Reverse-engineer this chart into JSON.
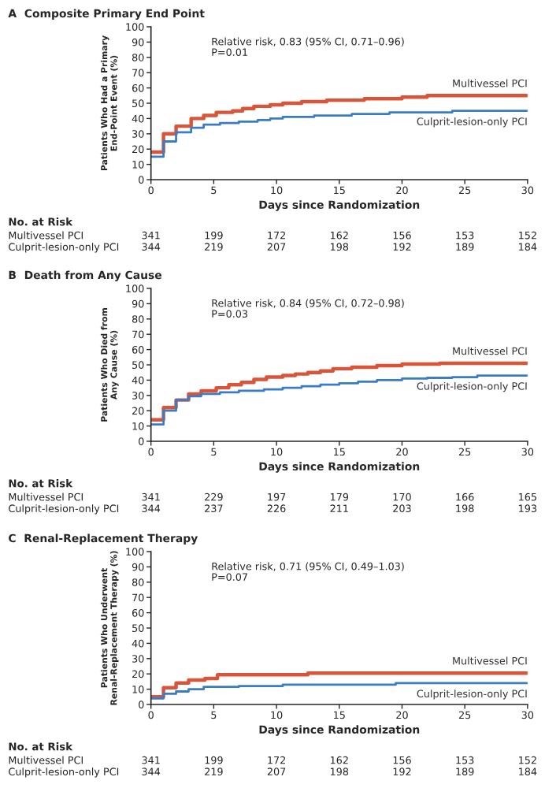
{
  "chart_data": [
    {
      "type": "step",
      "title": "A  Composite Primary End Point",
      "xlabel": "Days since Randomization",
      "ylabel": "Patients Who Had a Primary\nEnd-Point Event (%)",
      "xlim": [
        0,
        30
      ],
      "ylim": [
        0,
        100
      ],
      "xticks": [
        0,
        5,
        10,
        15,
        20,
        25,
        30
      ],
      "yticks": [
        0,
        10,
        20,
        30,
        40,
        50,
        60,
        70,
        80,
        90,
        100
      ],
      "grid": false,
      "legend": false,
      "series": [
        {
          "name": "Multivessel PCI",
          "color": "#d9553a",
          "x": [
            0,
            1,
            2,
            3.2,
            4.2,
            5.2,
            6.5,
            7.3,
            8.2,
            9.5,
            10.5,
            12,
            14,
            17,
            20,
            22,
            30
          ],
          "values": [
            18,
            30,
            35,
            40,
            42,
            44,
            45,
            46.5,
            48,
            49,
            50,
            51,
            52,
            53,
            54,
            55,
            55
          ]
        },
        {
          "name": "Culprit-lesion-only PCI",
          "color": "#3b7dc4",
          "x": [
            0,
            1,
            2,
            3.2,
            4.2,
            5.5,
            7,
            8.5,
            9.5,
            10.5,
            13,
            16,
            19,
            24,
            30
          ],
          "values": [
            15,
            25,
            31,
            34,
            36,
            37,
            38,
            39,
            40,
            41,
            42,
            43,
            44,
            45,
            45
          ]
        }
      ],
      "annotations": [
        "Relative risk, 0.83 (95% CI, 0.71–0.96)",
        "P=0.01",
        "No. at Risk",
        "Multivessel PCI",
        "341",
        "199",
        "172",
        "162",
        "156",
        "153",
        "152",
        "Culprit-lesion-only PCI",
        "344",
        "219",
        "207",
        "198",
        "192",
        "189",
        "184"
      ]
    },
    {
      "type": "step",
      "title": "B  Death from Any Cause",
      "xlabel": "Days since Randomization",
      "ylabel": "Patients Who Died from\nAny Cause (%)",
      "xlim": [
        0,
        30
      ],
      "ylim": [
        0,
        100
      ],
      "xticks": [
        0,
        5,
        10,
        15,
        20,
        25,
        30
      ],
      "yticks": [
        0,
        10,
        20,
        30,
        40,
        50,
        60,
        70,
        80,
        90,
        100
      ],
      "grid": false,
      "legend": false,
      "series": [
        {
          "name": "Multivessel PCI",
          "color": "#d9553a",
          "x": [
            0,
            1,
            2,
            3,
            4,
            5.2,
            6.2,
            7.2,
            8.2,
            9.2,
            10.5,
            11.5,
            12.5,
            13.5,
            14.5,
            16,
            18,
            20,
            23,
            30
          ],
          "values": [
            14,
            22,
            27,
            31,
            33,
            35,
            37,
            38.5,
            40.5,
            42,
            43,
            44,
            45,
            46,
            47.5,
            48.5,
            49.5,
            50.5,
            51,
            51
          ]
        },
        {
          "name": "Culprit-lesion-only PCI",
          "color": "#3b7dc4",
          "x": [
            0,
            1,
            2,
            3,
            4,
            5.5,
            7,
            9,
            10.5,
            12,
            13.5,
            15,
            16.5,
            18,
            20,
            22,
            24,
            26,
            30
          ],
          "values": [
            11,
            20,
            27,
            29.5,
            31,
            32,
            33,
            34,
            35,
            36,
            37,
            38,
            39,
            40,
            41,
            41.5,
            42,
            43,
            43
          ]
        }
      ],
      "annotations": [
        "Relative risk, 0.84 (95% CI, 0.72–0.98)",
        "P=0.03",
        "No. at Risk",
        "Multivessel PCI",
        "341",
        "229",
        "197",
        "179",
        "170",
        "166",
        "165",
        "Culprit-lesion-only PCI",
        "344",
        "237",
        "226",
        "211",
        "203",
        "198",
        "193"
      ]
    },
    {
      "type": "step",
      "title": "C  Renal-Replacement Therapy",
      "xlabel": "Days since Randomization",
      "ylabel": "Patients Who Underwent\nRenal-Replacement Therapy (%)",
      "xlim": [
        0,
        30
      ],
      "ylim": [
        0,
        100
      ],
      "xticks": [
        0,
        5,
        10,
        15,
        20,
        25,
        30
      ],
      "yticks": [
        0,
        10,
        20,
        30,
        40,
        50,
        60,
        70,
        80,
        90,
        100
      ],
      "grid": false,
      "legend": false,
      "series": [
        {
          "name": "Multivessel PCI",
          "color": "#d9553a",
          "x": [
            0,
            1,
            2,
            3,
            4.3,
            5.3,
            12.5,
            30
          ],
          "values": [
            5,
            11,
            14,
            16,
            17,
            19.5,
            20.5,
            20.5
          ]
        },
        {
          "name": "Culprit-lesion-only PCI",
          "color": "#3b7dc4",
          "x": [
            0,
            1,
            2,
            3,
            4.2,
            7,
            10.5,
            19.5,
            30
          ],
          "values": [
            4,
            7,
            8.5,
            10,
            11.5,
            12,
            13,
            14,
            14
          ]
        }
      ],
      "annotations": [
        "Relative risk, 0.71 (95% CI, 0.49–1.03)",
        "P=0.07",
        "No. at Risk",
        "Multivessel PCI",
        "341",
        "199",
        "172",
        "162",
        "156",
        "153",
        "152",
        "Culprit-lesion-only PCI",
        "344",
        "219",
        "207",
        "198",
        "192",
        "189",
        "184"
      ]
    }
  ]
}
